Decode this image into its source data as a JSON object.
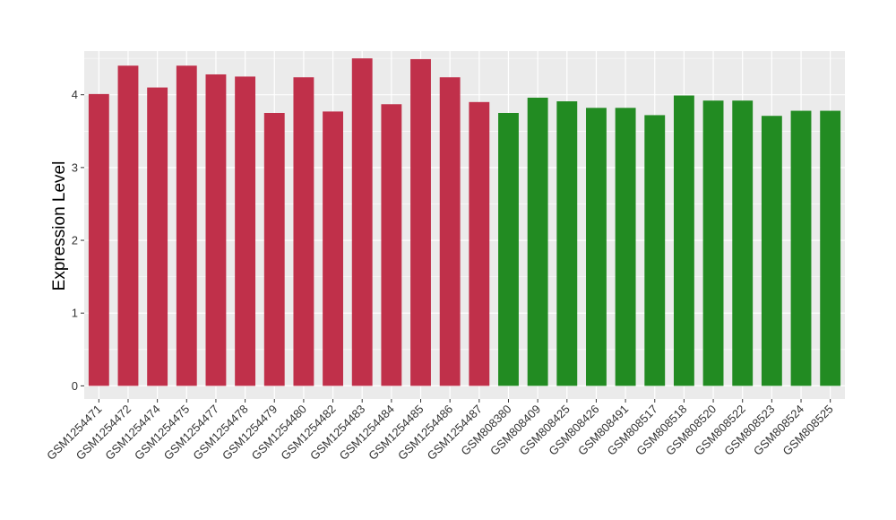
{
  "chart_data": {
    "type": "bar",
    "title": "",
    "xlabel": "",
    "ylabel": "Expression Level",
    "ylim": [
      -0.18,
      4.6
    ],
    "yticks": [
      0,
      1,
      2,
      3,
      4
    ],
    "grid": true,
    "legend": "none",
    "categories": [
      "GSM1254471",
      "GSM1254472",
      "GSM1254474",
      "GSM1254475",
      "GSM1254477",
      "GSM1254478",
      "GSM1254479",
      "GSM1254480",
      "GSM1254482",
      "GSM1254483",
      "GSM1254484",
      "GSM1254485",
      "GSM1254486",
      "GSM1254487",
      "GSM808380",
      "GSM808409",
      "GSM808425",
      "GSM808426",
      "GSM808491",
      "GSM808517",
      "GSM808518",
      "GSM808520",
      "GSM808522",
      "GSM808523",
      "GSM808524",
      "GSM808525"
    ],
    "values": [
      4.01,
      4.4,
      4.1,
      4.4,
      4.28,
      4.25,
      3.75,
      4.24,
      3.77,
      4.5,
      3.87,
      4.49,
      4.24,
      3.9,
      3.75,
      3.96,
      3.91,
      3.82,
      3.82,
      3.72,
      3.99,
      3.92,
      3.92,
      3.71,
      3.78,
      3.78
    ],
    "groups": [
      0,
      0,
      0,
      0,
      0,
      0,
      0,
      0,
      0,
      0,
      0,
      0,
      0,
      0,
      1,
      1,
      1,
      1,
      1,
      1,
      1,
      1,
      1,
      1,
      1,
      1
    ],
    "group_colors": [
      "#c0304a",
      "#228b22"
    ],
    "panel_bg": "#ebebeb",
    "grid_color": "#ffffff"
  }
}
